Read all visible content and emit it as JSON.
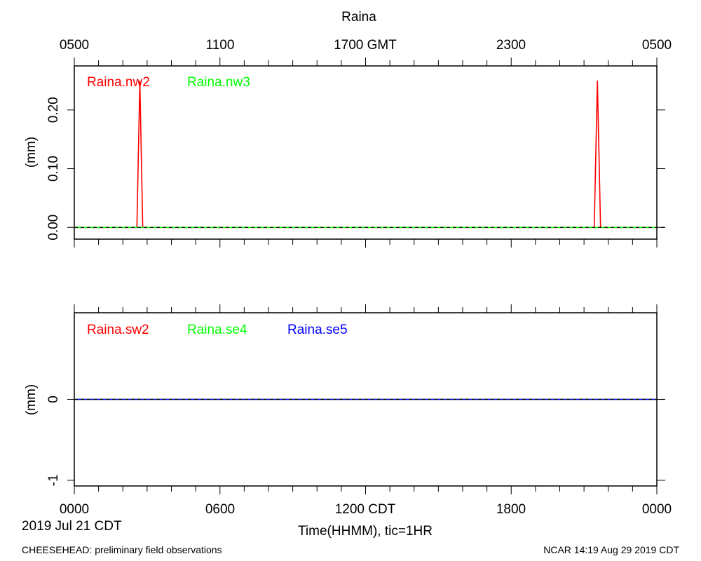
{
  "page": {
    "title": "Raina",
    "date_label": "2019 Jul 21 CDT",
    "footer_left": "CHEESEHEAD: preliminary field observations",
    "footer_right": "NCAR 14:19 Aug 29 2019 CDT"
  },
  "time_axis": {
    "bottom_ticks": [
      "0000",
      "0600",
      "1200 CDT",
      "1800",
      "0000"
    ],
    "top_ticks": [
      "0500",
      "1100",
      "1700 GMT",
      "2300",
      "0500"
    ],
    "xlabel": "Time(HHMM), tic=1HR",
    "range_hours": [
      0,
      24
    ]
  },
  "colors": {
    "red": "#ff0000",
    "green": "#00ff00",
    "blue": "#0000ff",
    "axis": "#000000"
  },
  "chart_data": [
    {
      "type": "line",
      "ylabel": "(mm)",
      "ylim": [
        -0.02,
        0.275
      ],
      "yticks": [
        0.0,
        0.1,
        0.2
      ],
      "ytick_labels": [
        "0.00",
        "0.10",
        "0.20"
      ],
      "zero_line": "dashed",
      "legend_placement": "top-left",
      "series": [
        {
          "name": "Raina.nw2",
          "color": "#ff0000",
          "x": [
            0,
            2.58,
            2.7,
            2.82,
            21.42,
            21.55,
            21.68,
            24
          ],
          "y": [
            0,
            0,
            0.25,
            0,
            0,
            0.25,
            0,
            0
          ]
        },
        {
          "name": "Raina.nw3",
          "color": "#00ff00",
          "x": [
            0,
            24
          ],
          "y": [
            0,
            0
          ]
        }
      ]
    },
    {
      "type": "line",
      "ylabel": "(mm)",
      "ylim": [
        -1.07,
        1.07
      ],
      "yticks": [
        -1,
        0
      ],
      "ytick_labels": [
        "-1",
        "0"
      ],
      "zero_line": "dashed",
      "legend_placement": "top-left",
      "series": [
        {
          "name": "Raina.sw2",
          "color": "#ff0000",
          "x": [
            0,
            24
          ],
          "y": [
            0,
            0
          ]
        },
        {
          "name": "Raina.se4",
          "color": "#00ff00",
          "x": [
            0,
            24
          ],
          "y": [
            0,
            0
          ]
        },
        {
          "name": "Raina.se5",
          "color": "#0000ff",
          "x": [
            0,
            24
          ],
          "y": [
            0,
            0
          ]
        }
      ]
    }
  ]
}
